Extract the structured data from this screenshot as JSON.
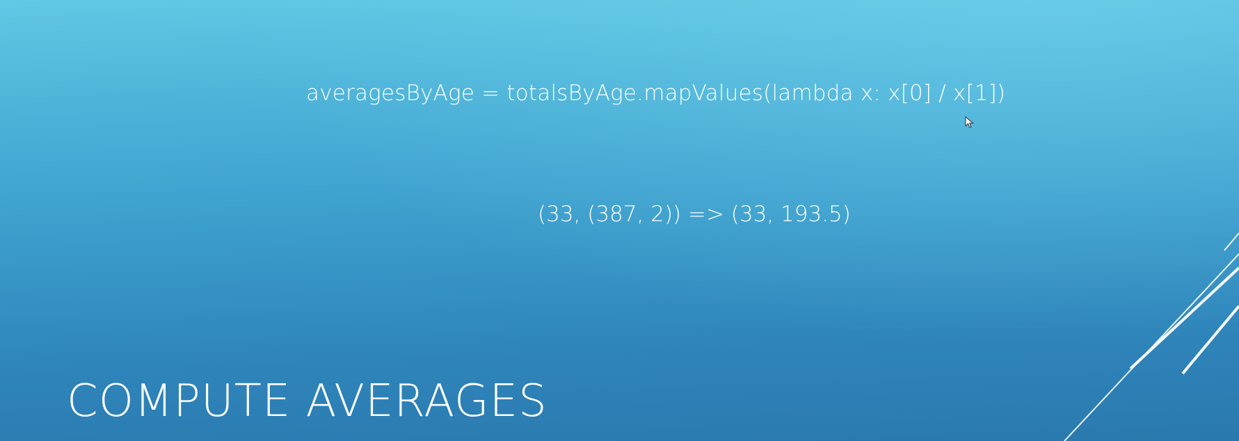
{
  "slide": {
    "code": "averagesByAge = totalsByAge.mapValues(lambda x: x[0] / x[1])",
    "example": "(33, (387, 2)) => (33, 193.5)",
    "title": "COMPUTE AVERAGES"
  },
  "colors": {
    "background_top": "#62c8e4",
    "background_bottom": "#2a79ae",
    "text": "#ffffff",
    "decoration": "#ffffff"
  },
  "icons": {
    "cursor": "mouse-pointer-icon"
  }
}
